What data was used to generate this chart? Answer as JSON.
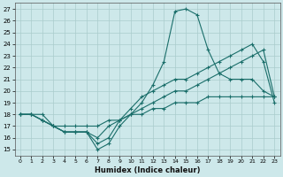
{
  "xlabel": "Humidex (Indice chaleur)",
  "bg_color": "#cde8ea",
  "grid_color": "#aacccc",
  "line_color": "#1a6e6a",
  "xlim": [
    -0.5,
    23.5
  ],
  "ylim": [
    14.5,
    27.5
  ],
  "xticks": [
    0,
    1,
    2,
    3,
    4,
    5,
    6,
    7,
    8,
    9,
    10,
    11,
    12,
    13,
    14,
    15,
    16,
    17,
    18,
    19,
    20,
    21,
    22,
    23
  ],
  "yticks": [
    15,
    16,
    17,
    18,
    19,
    20,
    21,
    22,
    23,
    24,
    25,
    26,
    27
  ],
  "series": {
    "line_peak": {
      "x": [
        0,
        1,
        2,
        3,
        4,
        5,
        6,
        7,
        8,
        9,
        10,
        11,
        12,
        13,
        14,
        15,
        16,
        17,
        18,
        19,
        20,
        21,
        22,
        23
      ],
      "y": [
        18,
        18,
        17.5,
        17,
        16.5,
        16.5,
        16.5,
        15.0,
        15.5,
        17.0,
        18.0,
        19.0,
        20.5,
        22.5,
        26.8,
        27.0,
        26.5,
        23.5,
        21.5,
        21.0,
        21.0,
        21.0,
        20.0,
        19.5
      ]
    },
    "line_high": {
      "x": [
        0,
        1,
        2,
        3,
        4,
        5,
        6,
        7,
        8,
        9,
        10,
        11,
        12,
        13,
        14,
        15,
        16,
        17,
        18,
        19,
        20,
        21,
        22,
        23
      ],
      "y": [
        18,
        18,
        17.5,
        17,
        16.5,
        16.5,
        16.5,
        15.5,
        16.0,
        17.5,
        18.5,
        19.5,
        20.0,
        20.5,
        21.0,
        21.0,
        21.5,
        22.0,
        22.5,
        23.0,
        23.5,
        24.0,
        22.5,
        19.0
      ]
    },
    "line_mid": {
      "x": [
        0,
        1,
        2,
        3,
        4,
        5,
        6,
        7,
        8,
        9,
        10,
        11,
        12,
        13,
        14,
        15,
        16,
        17,
        18,
        19,
        20,
        21,
        22,
        23
      ],
      "y": [
        18,
        18,
        17.5,
        17,
        16.5,
        16.5,
        16.5,
        16.0,
        17.0,
        17.5,
        18.0,
        18.5,
        19.0,
        19.5,
        20.0,
        20.0,
        20.5,
        21.0,
        21.5,
        22.0,
        22.5,
        23.0,
        23.5,
        19.5
      ]
    },
    "line_low": {
      "x": [
        0,
        1,
        2,
        3,
        4,
        5,
        6,
        7,
        8,
        9,
        10,
        11,
        12,
        13,
        14,
        15,
        16,
        17,
        18,
        19,
        20,
        21,
        22,
        23
      ],
      "y": [
        18,
        18,
        18,
        17,
        17,
        17,
        17,
        17,
        17.5,
        17.5,
        18.0,
        18.0,
        18.5,
        18.5,
        19.0,
        19.0,
        19.0,
        19.5,
        19.5,
        19.5,
        19.5,
        19.5,
        19.5,
        19.5
      ]
    }
  }
}
